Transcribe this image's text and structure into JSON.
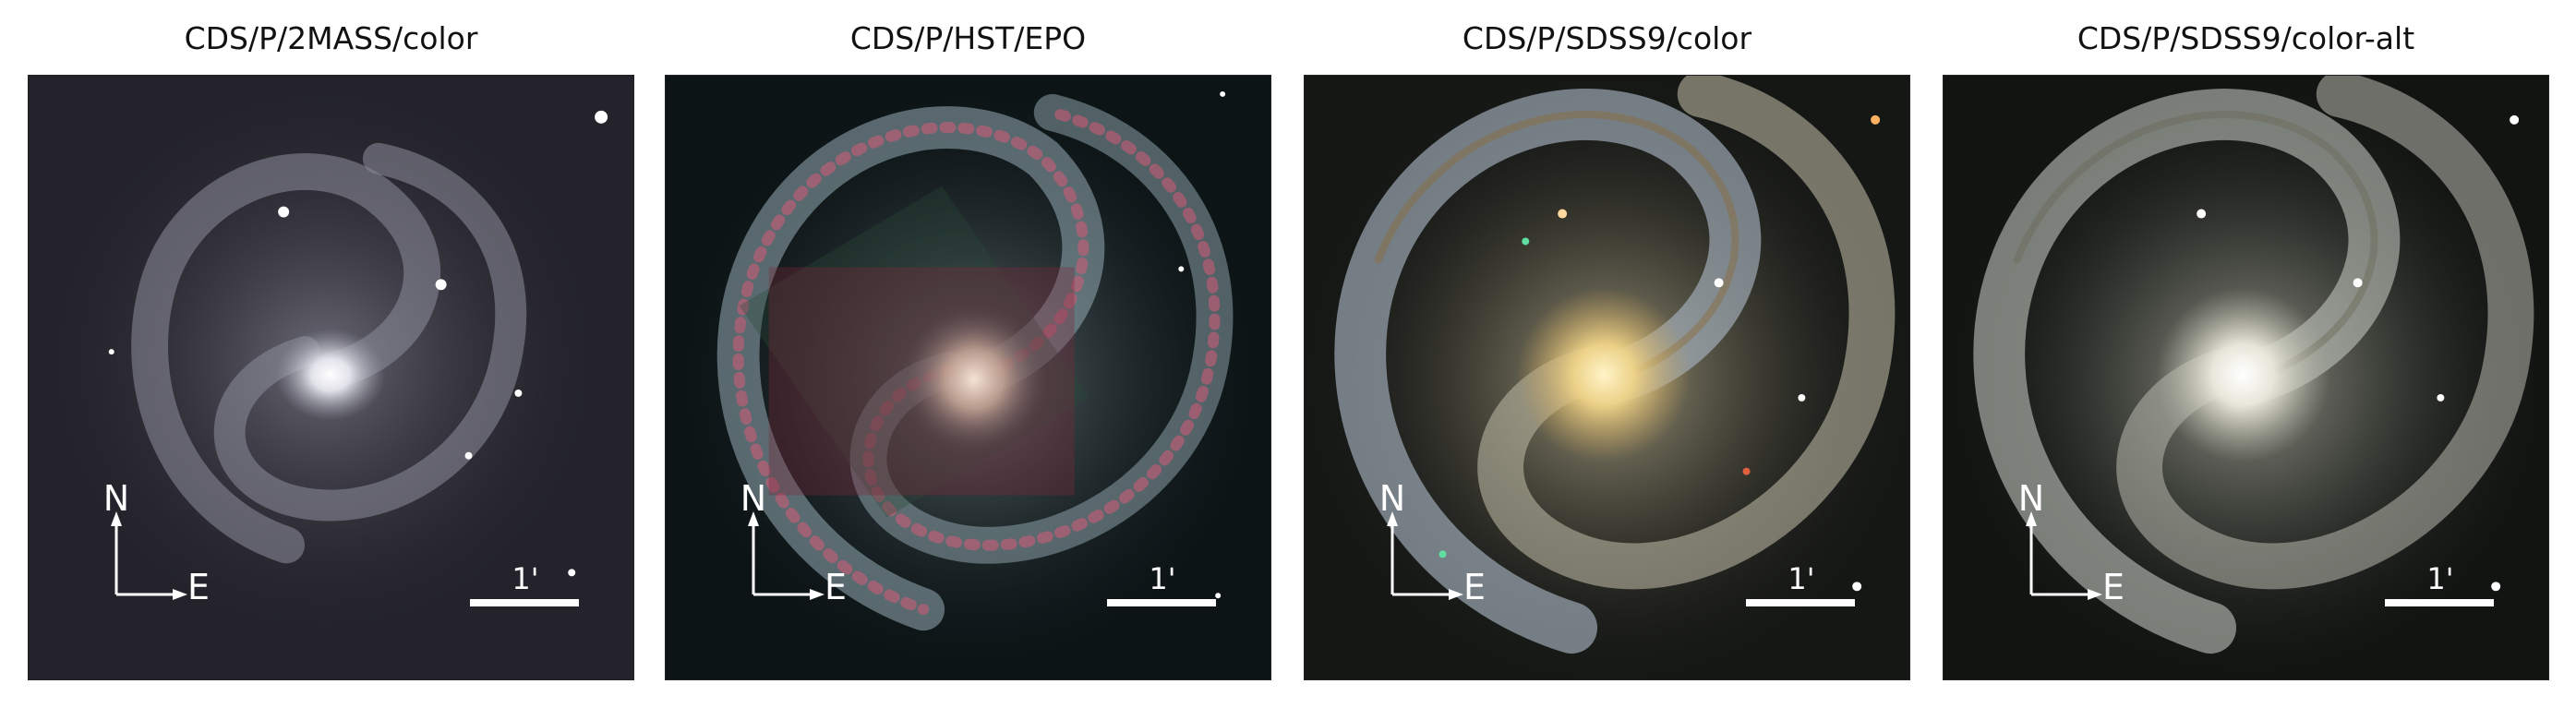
{
  "panels": [
    {
      "title": "CDS/P/2MASS/color",
      "north_label": "N",
      "east_label": "E",
      "scale_label": "1'"
    },
    {
      "title": "CDS/P/HST/EPO",
      "north_label": "N",
      "east_label": "E",
      "scale_label": "1'"
    },
    {
      "title": "CDS/P/SDSS9/color",
      "north_label": "N",
      "east_label": "E",
      "scale_label": "1'"
    },
    {
      "title": "CDS/P/SDSS9/color-alt",
      "north_label": "N",
      "east_label": "E",
      "scale_label": "1'"
    }
  ]
}
